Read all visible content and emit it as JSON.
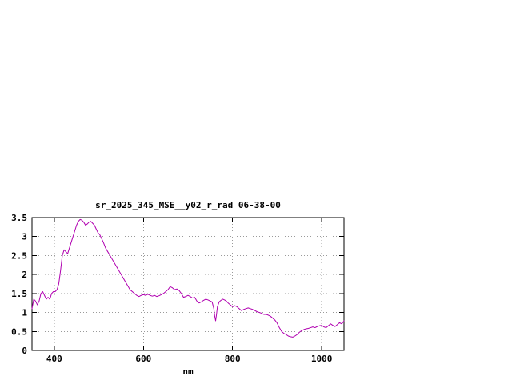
{
  "chart": {
    "line_color": "#b000b0",
    "grid_color": "#9a9a9a",
    "border_color": "#000000",
    "background_color": "#ffffff"
  },
  "chart_data": {
    "type": "line",
    "title": "sr_2025_345_MSE__y02_r_rad 06-38-00",
    "xlabel": "nm",
    "ylabel": "",
    "xlim": [
      350,
      1050
    ],
    "ylim": [
      0,
      3.5
    ],
    "xticks": [
      400,
      600,
      800,
      1000
    ],
    "yticks": [
      0,
      0.5,
      1,
      1.5,
      2,
      2.5,
      3,
      3.5
    ],
    "grid": true,
    "legend": "none",
    "series": [
      {
        "name": "sr_2025_345_MSE__y02_r_rad",
        "x": [
          350,
          354,
          358,
          362,
          366,
          370,
          374,
          378,
          382,
          386,
          390,
          394,
          398,
          402,
          406,
          410,
          414,
          418,
          422,
          426,
          430,
          434,
          438,
          442,
          446,
          450,
          454,
          458,
          462,
          466,
          470,
          474,
          478,
          482,
          486,
          490,
          494,
          498,
          502,
          506,
          510,
          515,
          520,
          525,
          530,
          535,
          540,
          545,
          550,
          555,
          560,
          565,
          570,
          575,
          580,
          585,
          590,
          595,
          600,
          605,
          610,
          615,
          620,
          625,
          630,
          635,
          640,
          645,
          650,
          655,
          660,
          665,
          670,
          675,
          680,
          685,
          690,
          695,
          700,
          705,
          710,
          715,
          720,
          725,
          730,
          735,
          740,
          745,
          750,
          754,
          758,
          760,
          762,
          764,
          766,
          770,
          774,
          778,
          782,
          786,
          790,
          795,
          800,
          805,
          810,
          815,
          820,
          825,
          830,
          835,
          840,
          845,
          850,
          855,
          860,
          865,
          870,
          875,
          880,
          885,
          890,
          895,
          900,
          905,
          910,
          915,
          920,
          925,
          930,
          935,
          940,
          945,
          950,
          955,
          960,
          965,
          970,
          975,
          980,
          985,
          990,
          995,
          1000,
          1005,
          1010,
          1015,
          1020,
          1025,
          1030,
          1035,
          1040,
          1045,
          1050
        ],
        "y": [
          1.1,
          1.35,
          1.3,
          1.2,
          1.3,
          1.5,
          1.55,
          1.45,
          1.35,
          1.4,
          1.35,
          1.5,
          1.55,
          1.55,
          1.6,
          1.75,
          2.1,
          2.5,
          2.65,
          2.6,
          2.55,
          2.7,
          2.85,
          3.0,
          3.15,
          3.3,
          3.4,
          3.45,
          3.43,
          3.38,
          3.3,
          3.33,
          3.38,
          3.4,
          3.35,
          3.3,
          3.2,
          3.1,
          3.05,
          2.95,
          2.85,
          2.7,
          2.6,
          2.5,
          2.4,
          2.3,
          2.2,
          2.1,
          2.0,
          1.9,
          1.8,
          1.7,
          1.6,
          1.55,
          1.5,
          1.45,
          1.42,
          1.45,
          1.47,
          1.45,
          1.48,
          1.45,
          1.43,
          1.45,
          1.42,
          1.44,
          1.47,
          1.5,
          1.55,
          1.6,
          1.68,
          1.65,
          1.6,
          1.62,
          1.58,
          1.5,
          1.4,
          1.42,
          1.45,
          1.42,
          1.38,
          1.4,
          1.3,
          1.25,
          1.28,
          1.32,
          1.35,
          1.33,
          1.3,
          1.28,
          1.1,
          0.9,
          0.78,
          0.95,
          1.15,
          1.28,
          1.32,
          1.35,
          1.33,
          1.3,
          1.25,
          1.2,
          1.15,
          1.18,
          1.15,
          1.1,
          1.05,
          1.08,
          1.1,
          1.12,
          1.1,
          1.08,
          1.05,
          1.02,
          1.0,
          0.98,
          0.95,
          0.95,
          0.93,
          0.9,
          0.85,
          0.8,
          0.72,
          0.6,
          0.5,
          0.45,
          0.42,
          0.38,
          0.36,
          0.35,
          0.38,
          0.42,
          0.48,
          0.52,
          0.55,
          0.57,
          0.58,
          0.6,
          0.62,
          0.6,
          0.63,
          0.65,
          0.66,
          0.62,
          0.6,
          0.65,
          0.7,
          0.66,
          0.63,
          0.68,
          0.73,
          0.7,
          0.78
        ]
      }
    ]
  }
}
